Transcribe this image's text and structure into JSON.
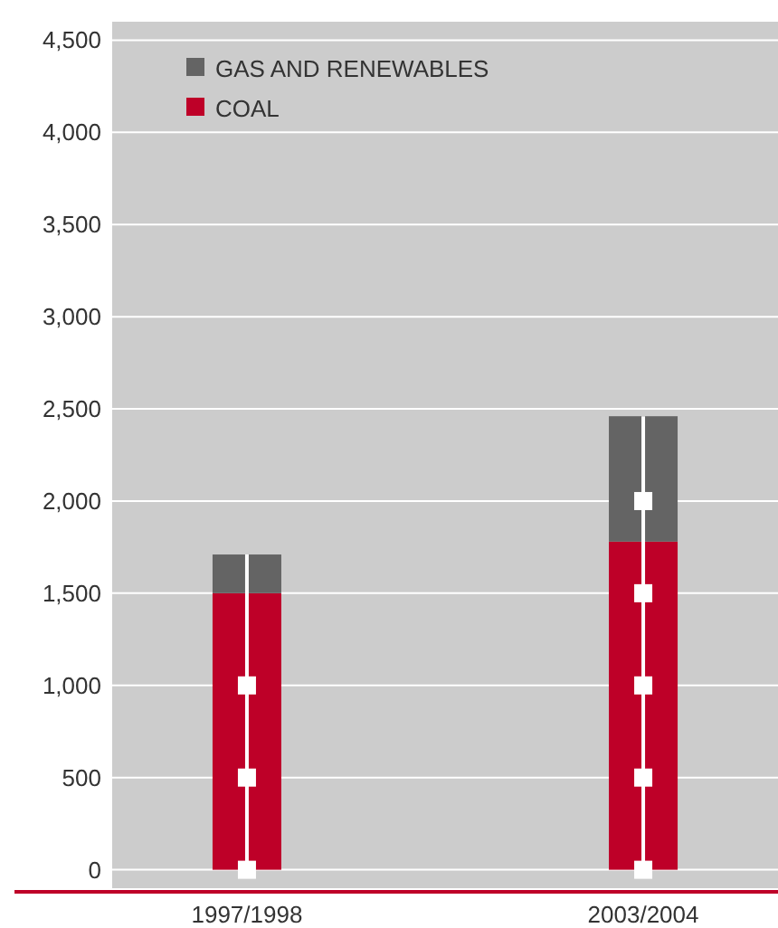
{
  "chart_data": {
    "type": "bar",
    "stacked": true,
    "categories": [
      "1997/1998",
      "2003/2004"
    ],
    "series": [
      {
        "name": "COAL",
        "color": "#be0028",
        "values": [
          1500,
          1780
        ]
      },
      {
        "name": "GAS AND RENEWABLES",
        "color": "#646464",
        "values": [
          210,
          680
        ]
      }
    ],
    "ylim": [
      -100,
      4600
    ],
    "yticks": [
      {
        "value": 0,
        "label": "0"
      },
      {
        "value": 500,
        "label": "500"
      },
      {
        "value": 1000,
        "label": "1,000"
      },
      {
        "value": 1500,
        "label": "1,500"
      },
      {
        "value": 2000,
        "label": "2,000"
      },
      {
        "value": 2500,
        "label": "2,500"
      },
      {
        "value": 3000,
        "label": "3,000"
      },
      {
        "value": 3500,
        "label": "3,500"
      },
      {
        "value": 4000,
        "label": "4,000"
      },
      {
        "value": 4500,
        "label": "4,500"
      }
    ],
    "grid": "y",
    "legend": "top left"
  }
}
